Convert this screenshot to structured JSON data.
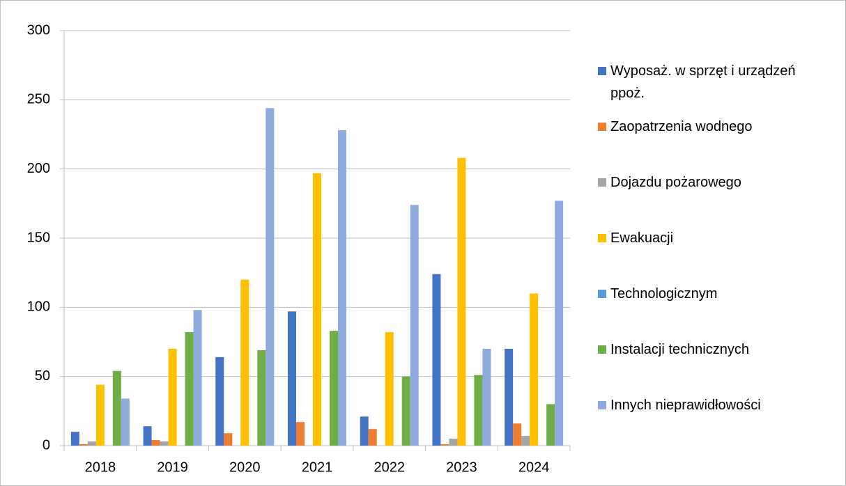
{
  "chart_data": {
    "type": "bar",
    "categories": [
      "2018",
      "2019",
      "2020",
      "2021",
      "2022",
      "2023",
      "2024"
    ],
    "series": [
      {
        "name": "Wyposaż. w sprzęt i urządzeń ppoż.",
        "color": "#4472c4",
        "values": [
          10,
          14,
          64,
          97,
          21,
          124,
          70
        ]
      },
      {
        "name": "Zaopatrzenia wodnego",
        "color": "#ed7d31",
        "values": [
          1,
          4,
          9,
          17,
          12,
          1,
          16
        ]
      },
      {
        "name": "Dojazdu pożarowego",
        "color": "#a5a5a5",
        "values": [
          3,
          3,
          0,
          0,
          0,
          5,
          7
        ]
      },
      {
        "name": "Ewakuacji",
        "color": "#ffc000",
        "values": [
          44,
          70,
          120,
          197,
          82,
          208,
          110
        ]
      },
      {
        "name": "Technologicznym",
        "color": "#5b9bd5",
        "values": [
          0,
          0,
          0,
          0,
          0,
          0,
          0
        ]
      },
      {
        "name": "Instalacji technicznych",
        "color": "#70ad47",
        "values": [
          54,
          82,
          69,
          83,
          50,
          51,
          30
        ]
      },
      {
        "name": "Innych nieprawidłowości",
        "color": "#8faadc",
        "values": [
          34,
          98,
          244,
          228,
          174,
          70,
          177
        ]
      }
    ],
    "ylim": [
      0,
      300
    ],
    "yticks": [
      0,
      50,
      100,
      150,
      200,
      250,
      300
    ],
    "grid": true,
    "legend": "right"
  }
}
